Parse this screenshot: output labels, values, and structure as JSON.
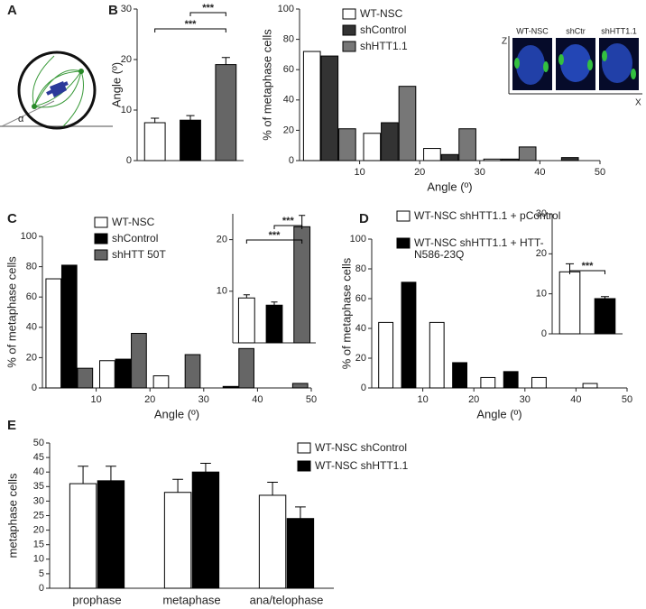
{
  "panel_labels": [
    "A",
    "B",
    "C",
    "D",
    "E"
  ],
  "diagram": {
    "angle_label": "α"
  },
  "images": {
    "labels": [
      "WT-NSC",
      "shCtr",
      "shHTT1.1"
    ],
    "z_axis": "Z",
    "x_axis": "X"
  },
  "chart_data": [
    {
      "type": "bar",
      "ylabel": "Angle (º)",
      "categories": [
        null,
        null,
        null
      ],
      "values": [
        7.5,
        8,
        19
      ],
      "errors": [
        0.9,
        0.9,
        1.4
      ],
      "colors": [
        "#ffffff",
        "#000000",
        "#666666"
      ],
      "ylim": [
        0,
        30
      ],
      "yticks": [
        0,
        10,
        20,
        30
      ],
      "annotations": [
        "***",
        "***"
      ]
    },
    {
      "type": "bar",
      "xlabel": "Angle (º)",
      "ylabel": "% of metaphase cells",
      "x": [
        5,
        15,
        25,
        35,
        45
      ],
      "series": [
        {
          "name": "WT-NSC",
          "color": "#ffffff",
          "values": [
            72,
            18,
            8,
            1,
            0
          ]
        },
        {
          "name": "shControl",
          "color": "#333333",
          "values": [
            69,
            25,
            4,
            1,
            2
          ]
        },
        {
          "name": "shHTT1.1",
          "color": "#777777",
          "values": [
            21,
            49,
            21,
            9,
            0
          ]
        }
      ],
      "xlim": [
        0,
        50
      ],
      "xticks": [
        10,
        20,
        30,
        40,
        50
      ],
      "ylim": [
        0,
        100
      ],
      "yticks": [
        0,
        20,
        40,
        60,
        80,
        100
      ]
    },
    {
      "type": "bar",
      "xlabel": "Angle (º)",
      "ylabel": "% of metaphase cells",
      "x": [
        5,
        15,
        25,
        35,
        45
      ],
      "series": [
        {
          "name": "WT-NSC",
          "color": "#ffffff",
          "values": [
            72,
            18,
            8,
            0,
            0
          ]
        },
        {
          "name": "shControl",
          "color": "#000000",
          "values": [
            81,
            19,
            0,
            1,
            0
          ]
        },
        {
          "name": "shHTT 50T",
          "color": "#666666",
          "values": [
            13,
            36,
            22,
            26,
            3
          ]
        }
      ],
      "xlim": [
        0,
        50
      ],
      "xticks": [
        10,
        20,
        30,
        40,
        50
      ],
      "ylim": [
        0,
        100
      ],
      "yticks": [
        0,
        20,
        40,
        60,
        80,
        100
      ]
    },
    {
      "type": "bar",
      "categories": [
        null,
        null,
        null
      ],
      "values": [
        8.7,
        7.3,
        22.5
      ],
      "errors": [
        0.6,
        0.6,
        2.2
      ],
      "colors": [
        "#ffffff",
        "#000000",
        "#666666"
      ],
      "ylim": [
        0,
        25
      ],
      "yticks": [
        10,
        20
      ],
      "annotations": [
        "***",
        "***"
      ]
    },
    {
      "type": "bar",
      "xlabel": "Angle (º)",
      "ylabel": "% of metaphase cells",
      "x": [
        5,
        15,
        25,
        35,
        45
      ],
      "series": [
        {
          "name": "WT-NSC shHTT1.1 + pControl",
          "color": "#ffffff",
          "values": [
            44,
            44,
            7,
            7,
            3
          ]
        },
        {
          "name": "WT-NSC shHTT1.1 + HTT-N586-23Q",
          "color": "#000000",
          "values": [
            71,
            17,
            11,
            0,
            0
          ]
        }
      ],
      "xlim": [
        0,
        50
      ],
      "xticks": [
        10,
        20,
        30,
        40,
        50
      ],
      "ylim": [
        0,
        100
      ],
      "yticks": [
        0,
        20,
        40,
        60,
        80,
        100
      ]
    },
    {
      "type": "bar",
      "categories": [
        null,
        null
      ],
      "values": [
        15.5,
        8.8
      ],
      "errors": [
        2,
        0.5
      ],
      "colors": [
        "#ffffff",
        "#000000"
      ],
      "ylim": [
        0,
        30
      ],
      "yticks": [
        0,
        10,
        20,
        30
      ],
      "annotations": [
        "***"
      ]
    },
    {
      "type": "bar",
      "ylabel": "metaphase cells",
      "categories": [
        "prophase",
        "metaphase",
        "ana/telophase"
      ],
      "series": [
        {
          "name": "WT-NSC shControl",
          "color": "#ffffff",
          "values": [
            36,
            33,
            32
          ],
          "errors": [
            6,
            4.5,
            4.5
          ]
        },
        {
          "name": "WT-NSC shHTT1.1",
          "color": "#000000",
          "values": [
            37,
            40,
            24
          ],
          "errors": [
            5,
            3,
            4
          ]
        }
      ],
      "ylim": [
        0,
        50
      ],
      "yticks": [
        0,
        5,
        10,
        15,
        20,
        25,
        30,
        35,
        40,
        45,
        50
      ]
    }
  ]
}
